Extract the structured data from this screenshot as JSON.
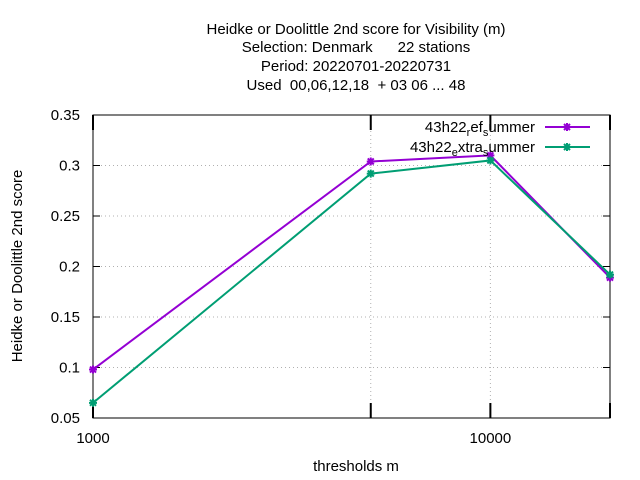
{
  "chart_data": {
    "type": "line",
    "title_lines": [
      "Heidke or Doolittle 2nd score  for Visibility (m)",
      "Selection: Denmark      22 stations",
      "Period: 20220701-20220731",
      "Used  00,06,12,18  + 03 06 ... 48"
    ],
    "xlabel": "thresholds m",
    "ylabel": "Heidke or Doolittle 2nd score",
    "x_scale": "log",
    "xlim": [
      1000,
      20000
    ],
    "ylim": [
      0.05,
      0.35
    ],
    "x_ticks": [
      {
        "value": 1000,
        "label": "1000"
      },
      {
        "value": 5000,
        "label": ""
      },
      {
        "value": 10000,
        "label": "10000"
      },
      {
        "value": 20000,
        "label": ""
      }
    ],
    "y_ticks": [
      {
        "value": 0.05,
        "label": "0.05"
      },
      {
        "value": 0.1,
        "label": "0.1"
      },
      {
        "value": 0.15,
        "label": "0.15"
      },
      {
        "value": 0.2,
        "label": "0.2"
      },
      {
        "value": 0.25,
        "label": "0.25"
      },
      {
        "value": 0.3,
        "label": "0.3"
      },
      {
        "value": 0.35,
        "label": "0.35"
      }
    ],
    "grid": true,
    "legend_position": "top-right",
    "series": [
      {
        "legend_parts": [
          {
            "text": "43h22",
            "sub": false
          },
          {
            "text": "r",
            "sub": true
          },
          {
            "text": "ef",
            "sub": false
          },
          {
            "text": "s",
            "sub": true
          },
          {
            "text": "ummer",
            "sub": false
          }
        ],
        "color": "#9400d3",
        "x": [
          1000,
          5000,
          10000,
          20000
        ],
        "y": [
          0.098,
          0.304,
          0.31,
          0.189
        ]
      },
      {
        "legend_parts": [
          {
            "text": "43h22",
            "sub": false
          },
          {
            "text": "e",
            "sub": true
          },
          {
            "text": "xtra",
            "sub": false
          },
          {
            "text": "s",
            "sub": true
          },
          {
            "text": "ummer",
            "sub": false
          }
        ],
        "color": "#009e73",
        "x": [
          1000,
          5000,
          10000,
          20000
        ],
        "y": [
          0.065,
          0.292,
          0.305,
          0.192
        ]
      }
    ]
  }
}
